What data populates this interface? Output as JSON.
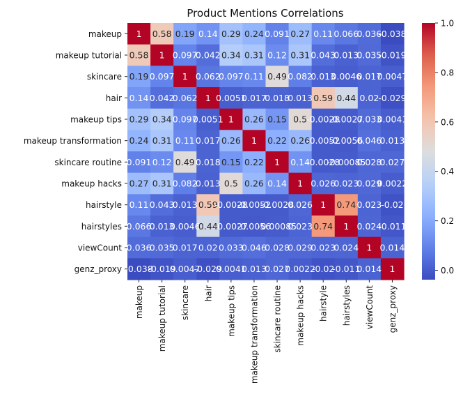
{
  "chart_data": {
    "type": "heatmap",
    "title": "Product Mentions Correlations",
    "labels": [
      "makeup",
      "makeup tutorial",
      "skincare",
      "hair",
      "makeup tips",
      "makeup transformation",
      "skincare routine",
      "makeup hacks",
      "hairstyle",
      "hairstyles",
      "viewCount",
      "genz_proxy"
    ],
    "matrix": [
      [
        1,
        0.58,
        0.19,
        0.14,
        0.29,
        0.24,
        0.091,
        0.27,
        0.11,
        0.066,
        0.036,
        -0.038
      ],
      [
        0.58,
        1,
        0.097,
        0.042,
        0.34,
        0.31,
        0.12,
        0.31,
        0.043,
        0.013,
        0.035,
        -0.019
      ],
      [
        0.19,
        0.097,
        1,
        0.062,
        0.097,
        0.11,
        0.49,
        0.082,
        0.013,
        0.0046,
        0.017,
        0.0047
      ],
      [
        0.14,
        0.042,
        0.062,
        1,
        0.0051,
        0.017,
        0.018,
        0.013,
        0.59,
        0.44,
        0.02,
        -0.029
      ],
      [
        0.29,
        0.34,
        0.097,
        0.0051,
        1,
        0.26,
        0.15,
        0.5,
        -0.0028,
        -0.0027,
        0.033,
        0.0041
      ],
      [
        0.24,
        0.31,
        0.11,
        0.017,
        0.26,
        1,
        0.22,
        0.26,
        -0.0052,
        -0.0056,
        0.046,
        0.013
      ],
      [
        0.091,
        0.12,
        0.49,
        0.018,
        0.15,
        0.22,
        1,
        0.14,
        -0.0028,
        -0.00085,
        0.028,
        0.027
      ],
      [
        0.27,
        0.31,
        0.082,
        0.013,
        0.5,
        0.26,
        0.14,
        1,
        0.026,
        0.023,
        0.029,
        0.0022
      ],
      [
        0.11,
        0.043,
        0.013,
        0.59,
        -0.0028,
        -0.0052,
        -0.0028,
        0.026,
        1,
        0.74,
        0.023,
        -0.02
      ],
      [
        0.066,
        0.013,
        0.0046,
        0.44,
        -0.0027,
        -0.0056,
        -0.00085,
        0.023,
        0.74,
        1,
        0.024,
        -0.011
      ],
      [
        0.036,
        0.035,
        0.017,
        0.02,
        0.033,
        0.046,
        0.028,
        0.029,
        0.023,
        0.024,
        1,
        0.014
      ],
      [
        -0.038,
        -0.019,
        0.0047,
        -0.029,
        0.0041,
        0.013,
        0.027,
        0.0022,
        -0.02,
        -0.011,
        0.014,
        1
      ]
    ],
    "cell_labels": [
      [
        "1",
        "0.58",
        "0.19",
        "0.14",
        "0.29",
        "0.24",
        "0.091",
        "0.27",
        "0.11",
        "0.066",
        "0.036",
        "-0.038"
      ],
      [
        "0.58",
        "1",
        "0.097",
        "0.042",
        "0.34",
        "0.31",
        "0.12",
        "0.31",
        "0.043",
        "0.013",
        "0.035",
        "-0.019"
      ],
      [
        "0.19",
        "0.097",
        "1",
        "0.062",
        "0.097",
        "0.11",
        "0.49",
        "0.082",
        "0.013",
        "0.0046",
        "0.017",
        "0.0047"
      ],
      [
        "0.14",
        "0.042",
        "0.062",
        "1",
        "0.0051",
        "0.017",
        "0.018",
        "0.013",
        "0.59",
        "0.44",
        "0.02",
        "-0.029"
      ],
      [
        "0.29",
        "0.34",
        "0.097",
        "0.0051",
        "1",
        "0.26",
        "0.15",
        "0.5",
        "-0.0028",
        "-0.0027",
        "0.033",
        "0.0041"
      ],
      [
        "0.24",
        "0.31",
        "0.11",
        "0.017",
        "0.26",
        "1",
        "0.22",
        "0.26",
        "-0.0052",
        "-0.0056",
        "0.046",
        "0.013"
      ],
      [
        "0.091",
        "0.12",
        "0.49",
        "0.018",
        "0.15",
        "0.22",
        "1",
        "0.14",
        "-0.0028",
        "-0.00085",
        "0.028",
        "0.027"
      ],
      [
        "0.27",
        "0.31",
        "0.082",
        "0.013",
        "0.5",
        "0.26",
        "0.14",
        "1",
        "0.026",
        "0.023",
        "0.029",
        "0.0022"
      ],
      [
        "0.11",
        "0.043",
        "0.013",
        "0.59",
        "-0.0028",
        "-0.0052",
        "-0.0028",
        "0.026",
        "1",
        "0.74",
        "0.023",
        "-0.02"
      ],
      [
        "0.066",
        "0.013",
        "0.0046",
        "0.44",
        "-0.0027",
        "-0.0056",
        "-0.00085",
        "0.023",
        "0.74",
        "1",
        "0.024",
        "-0.011"
      ],
      [
        "0.036",
        "0.035",
        "0.017",
        "0.02",
        "0.033",
        "0.046",
        "0.028",
        "0.029",
        "0.023",
        "0.024",
        "1",
        "0.014"
      ],
      [
        "-0.038",
        "-0.019",
        "0.0047",
        "-0.029",
        "0.0041",
        "0.013",
        "0.027",
        "0.0022",
        "-0.02",
        "-0.011",
        "0.014",
        "1"
      ]
    ],
    "colorbar": {
      "colormap": "coolwarm",
      "range": [
        -0.038,
        1
      ],
      "ticks": [
        "0.0",
        "0.2",
        "0.4",
        "0.6",
        "0.8",
        "1.0"
      ]
    }
  }
}
